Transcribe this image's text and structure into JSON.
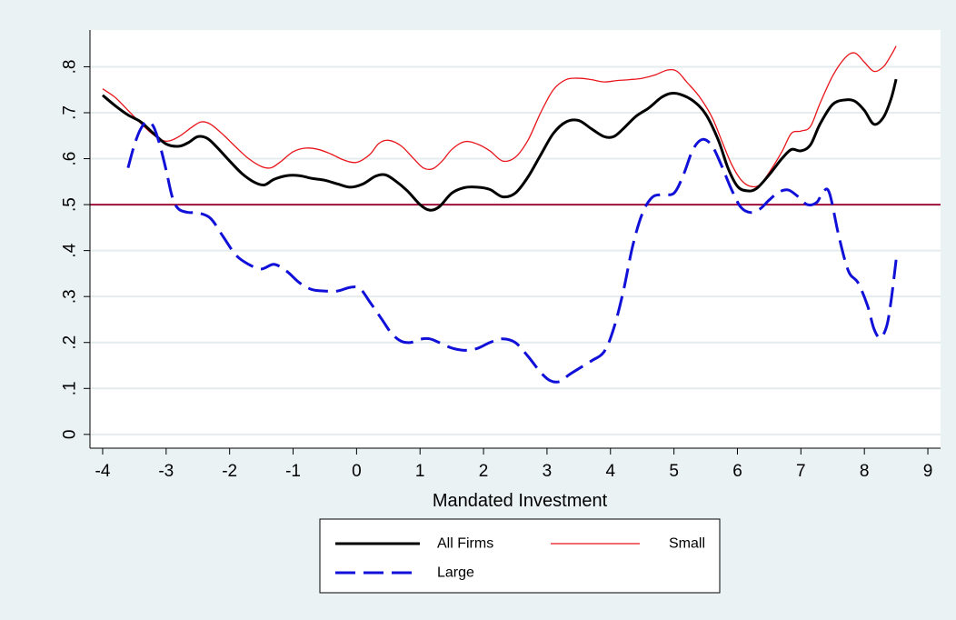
{
  "chart_data": {
    "type": "line",
    "title": "",
    "xlabel": "Mandated Investment",
    "ylabel": "",
    "xlim": [
      -4.2,
      9.2
    ],
    "ylim": [
      -0.03,
      0.88
    ],
    "xticks": [
      -4,
      -3,
      -2,
      -1,
      0,
      1,
      2,
      3,
      4,
      5,
      6,
      7,
      8,
      9
    ],
    "xtick_labels": [
      "-4",
      "-3",
      "-2",
      "-1",
      "0",
      "1",
      "2",
      "3",
      "4",
      "5",
      "6",
      "7",
      "8",
      "9"
    ],
    "yticks": [
      0,
      0.1,
      0.2,
      0.3,
      0.4,
      0.5,
      0.6,
      0.7,
      0.8
    ],
    "ytick_labels": [
      "0",
      ".1",
      ".2",
      ".3",
      ".4",
      ".5",
      ".6",
      ".7",
      ".8"
    ],
    "grid": true,
    "reference_line": {
      "y": 0.5,
      "color": "#a0103a"
    },
    "legend": {
      "position": "bottom",
      "columns": 2
    },
    "series": [
      {
        "name": "All Firms",
        "color": "#000000",
        "style": "solid",
        "points": [
          [
            -4,
            0.738
          ],
          [
            -3.8,
            0.715
          ],
          [
            -3.6,
            0.695
          ],
          [
            -3.4,
            0.68
          ],
          [
            -3.2,
            0.655
          ],
          [
            -3,
            0.632
          ],
          [
            -2.8,
            0.627
          ],
          [
            -2.65,
            0.635
          ],
          [
            -2.5,
            0.648
          ],
          [
            -2.35,
            0.644
          ],
          [
            -2.2,
            0.625
          ],
          [
            -2,
            0.595
          ],
          [
            -1.8,
            0.567
          ],
          [
            -1.6,
            0.548
          ],
          [
            -1.45,
            0.543
          ],
          [
            -1.3,
            0.555
          ],
          [
            -1.1,
            0.563
          ],
          [
            -0.9,
            0.563
          ],
          [
            -0.7,
            0.557
          ],
          [
            -0.5,
            0.553
          ],
          [
            -0.3,
            0.545
          ],
          [
            -0.1,
            0.538
          ],
          [
            0.1,
            0.545
          ],
          [
            0.3,
            0.562
          ],
          [
            0.45,
            0.565
          ],
          [
            0.6,
            0.553
          ],
          [
            0.8,
            0.53
          ],
          [
            1,
            0.5
          ],
          [
            1.15,
            0.488
          ],
          [
            1.3,
            0.495
          ],
          [
            1.5,
            0.525
          ],
          [
            1.7,
            0.537
          ],
          [
            1.9,
            0.538
          ],
          [
            2.1,
            0.533
          ],
          [
            2.3,
            0.517
          ],
          [
            2.5,
            0.525
          ],
          [
            2.7,
            0.56
          ],
          [
            2.9,
            0.608
          ],
          [
            3.1,
            0.655
          ],
          [
            3.3,
            0.68
          ],
          [
            3.5,
            0.683
          ],
          [
            3.7,
            0.665
          ],
          [
            3.9,
            0.648
          ],
          [
            4.05,
            0.648
          ],
          [
            4.2,
            0.665
          ],
          [
            4.4,
            0.692
          ],
          [
            4.6,
            0.71
          ],
          [
            4.8,
            0.733
          ],
          [
            4.95,
            0.742
          ],
          [
            5.1,
            0.74
          ],
          [
            5.3,
            0.726
          ],
          [
            5.5,
            0.697
          ],
          [
            5.7,
            0.64
          ],
          [
            5.85,
            0.58
          ],
          [
            6,
            0.54
          ],
          [
            6.15,
            0.53
          ],
          [
            6.3,
            0.535
          ],
          [
            6.5,
            0.565
          ],
          [
            6.7,
            0.6
          ],
          [
            6.85,
            0.62
          ],
          [
            7,
            0.617
          ],
          [
            7.15,
            0.63
          ],
          [
            7.3,
            0.675
          ],
          [
            7.5,
            0.718
          ],
          [
            7.7,
            0.728
          ],
          [
            7.85,
            0.725
          ],
          [
            8,
            0.705
          ],
          [
            8.15,
            0.675
          ],
          [
            8.3,
            0.69
          ],
          [
            8.42,
            0.73
          ],
          [
            8.5,
            0.773
          ]
        ]
      },
      {
        "name": "Small",
        "color": "#e8151b",
        "style": "solid",
        "points": [
          [
            -4,
            0.752
          ],
          [
            -3.8,
            0.733
          ],
          [
            -3.6,
            0.705
          ],
          [
            -3.4,
            0.677
          ],
          [
            -3.2,
            0.652
          ],
          [
            -3,
            0.638
          ],
          [
            -2.8,
            0.648
          ],
          [
            -2.6,
            0.668
          ],
          [
            -2.45,
            0.68
          ],
          [
            -2.3,
            0.675
          ],
          [
            -2.1,
            0.652
          ],
          [
            -1.9,
            0.625
          ],
          [
            -1.7,
            0.6
          ],
          [
            -1.5,
            0.583
          ],
          [
            -1.35,
            0.58
          ],
          [
            -1.2,
            0.593
          ],
          [
            -1,
            0.615
          ],
          [
            -0.8,
            0.623
          ],
          [
            -0.6,
            0.62
          ],
          [
            -0.4,
            0.61
          ],
          [
            -0.2,
            0.597
          ],
          [
            0,
            0.592
          ],
          [
            0.2,
            0.608
          ],
          [
            0.35,
            0.633
          ],
          [
            0.5,
            0.64
          ],
          [
            0.7,
            0.628
          ],
          [
            0.9,
            0.6
          ],
          [
            1.05,
            0.58
          ],
          [
            1.2,
            0.578
          ],
          [
            1.35,
            0.595
          ],
          [
            1.5,
            0.62
          ],
          [
            1.7,
            0.637
          ],
          [
            1.9,
            0.632
          ],
          [
            2.1,
            0.617
          ],
          [
            2.3,
            0.595
          ],
          [
            2.5,
            0.603
          ],
          [
            2.7,
            0.64
          ],
          [
            2.9,
            0.7
          ],
          [
            3.1,
            0.75
          ],
          [
            3.3,
            0.772
          ],
          [
            3.5,
            0.775
          ],
          [
            3.7,
            0.772
          ],
          [
            3.9,
            0.767
          ],
          [
            4.1,
            0.77
          ],
          [
            4.3,
            0.772
          ],
          [
            4.5,
            0.775
          ],
          [
            4.7,
            0.782
          ],
          [
            4.9,
            0.793
          ],
          [
            5.05,
            0.79
          ],
          [
            5.2,
            0.767
          ],
          [
            5.4,
            0.735
          ],
          [
            5.6,
            0.69
          ],
          [
            5.75,
            0.64
          ],
          [
            5.9,
            0.59
          ],
          [
            6.05,
            0.555
          ],
          [
            6.2,
            0.54
          ],
          [
            6.35,
            0.543
          ],
          [
            6.5,
            0.57
          ],
          [
            6.7,
            0.615
          ],
          [
            6.85,
            0.655
          ],
          [
            7,
            0.66
          ],
          [
            7.15,
            0.67
          ],
          [
            7.3,
            0.72
          ],
          [
            7.5,
            0.78
          ],
          [
            7.7,
            0.82
          ],
          [
            7.85,
            0.83
          ],
          [
            8,
            0.81
          ],
          [
            8.15,
            0.79
          ],
          [
            8.3,
            0.8
          ],
          [
            8.42,
            0.825
          ],
          [
            8.5,
            0.845
          ]
        ]
      },
      {
        "name": "Large",
        "color": "#1010d8",
        "style": "dashed",
        "points": [
          [
            -3.6,
            0.58
          ],
          [
            -3.5,
            0.63
          ],
          [
            -3.4,
            0.665
          ],
          [
            -3.3,
            0.68
          ],
          [
            -3.2,
            0.67
          ],
          [
            -3.1,
            0.63
          ],
          [
            -3,
            0.575
          ],
          [
            -2.9,
            0.515
          ],
          [
            -2.8,
            0.49
          ],
          [
            -2.65,
            0.483
          ],
          [
            -2.5,
            0.482
          ],
          [
            -2.3,
            0.47
          ],
          [
            -2.1,
            0.43
          ],
          [
            -1.9,
            0.39
          ],
          [
            -1.7,
            0.37
          ],
          [
            -1.5,
            0.36
          ],
          [
            -1.3,
            0.37
          ],
          [
            -1.1,
            0.355
          ],
          [
            -0.9,
            0.33
          ],
          [
            -0.7,
            0.315
          ],
          [
            -0.5,
            0.312
          ],
          [
            -0.3,
            0.312
          ],
          [
            -0.1,
            0.32
          ],
          [
            0.05,
            0.318
          ],
          [
            0.2,
            0.29
          ],
          [
            0.4,
            0.25
          ],
          [
            0.55,
            0.22
          ],
          [
            0.7,
            0.203
          ],
          [
            0.85,
            0.2
          ],
          [
            1,
            0.207
          ],
          [
            1.15,
            0.208
          ],
          [
            1.3,
            0.2
          ],
          [
            1.5,
            0.188
          ],
          [
            1.7,
            0.183
          ],
          [
            1.9,
            0.187
          ],
          [
            2.1,
            0.2
          ],
          [
            2.3,
            0.208
          ],
          [
            2.5,
            0.2
          ],
          [
            2.7,
            0.17
          ],
          [
            2.9,
            0.135
          ],
          [
            3.05,
            0.117
          ],
          [
            3.2,
            0.115
          ],
          [
            3.35,
            0.13
          ],
          [
            3.5,
            0.143
          ],
          [
            3.7,
            0.16
          ],
          [
            3.9,
            0.18
          ],
          [
            4.05,
            0.23
          ],
          [
            4.2,
            0.31
          ],
          [
            4.35,
            0.41
          ],
          [
            4.5,
            0.48
          ],
          [
            4.65,
            0.515
          ],
          [
            4.8,
            0.522
          ],
          [
            5,
            0.525
          ],
          [
            5.15,
            0.565
          ],
          [
            5.3,
            0.62
          ],
          [
            5.45,
            0.642
          ],
          [
            5.6,
            0.628
          ],
          [
            5.75,
            0.585
          ],
          [
            5.9,
            0.535
          ],
          [
            6.05,
            0.495
          ],
          [
            6.2,
            0.483
          ],
          [
            6.35,
            0.49
          ],
          [
            6.5,
            0.51
          ],
          [
            6.65,
            0.527
          ],
          [
            6.8,
            0.532
          ],
          [
            6.95,
            0.518
          ],
          [
            7.1,
            0.5
          ],
          [
            7.25,
            0.505
          ],
          [
            7.35,
            0.528
          ],
          [
            7.45,
            0.525
          ],
          [
            7.6,
            0.43
          ],
          [
            7.75,
            0.355
          ],
          [
            7.9,
            0.33
          ],
          [
            8.05,
            0.28
          ],
          [
            8.15,
            0.23
          ],
          [
            8.25,
            0.21
          ],
          [
            8.35,
            0.235
          ],
          [
            8.42,
            0.29
          ],
          [
            8.5,
            0.38
          ]
        ]
      }
    ]
  }
}
